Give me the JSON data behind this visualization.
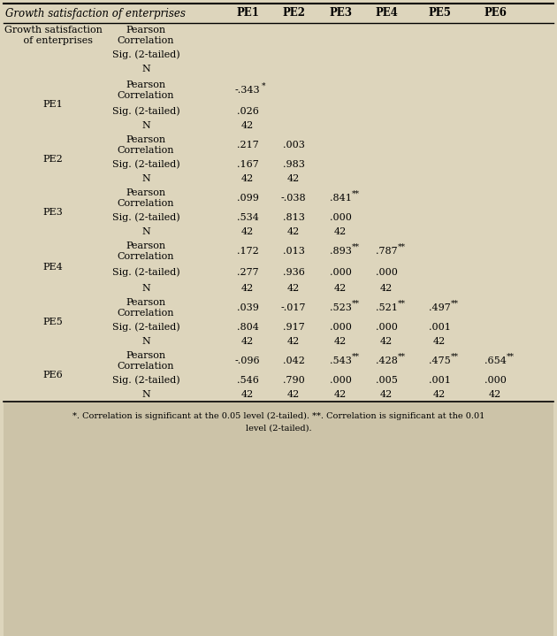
{
  "title": "Growth satisfaction of enterprises",
  "col_headers": [
    "PE1",
    "PE2",
    "PE3",
    "PE4",
    "PE5",
    "PE6"
  ],
  "bg_color": "#ddd5bc",
  "footnote_bg": "#ccc3a8",
  "rows": [
    {
      "row_label": "Growth satisfaction\n   of enterprises",
      "sub_rows": [
        {
          "label": "Pearson\nCorrelation",
          "values": [
            "",
            "",
            "",
            "",
            "",
            ""
          ]
        },
        {
          "label": "Sig. (2-tailed)",
          "values": [
            "",
            "",
            "",
            "",
            "",
            ""
          ]
        },
        {
          "label": "N",
          "values": [
            "",
            "",
            "",
            "",
            "",
            ""
          ]
        }
      ]
    },
    {
      "row_label": "PE1",
      "sub_rows": [
        {
          "label": "Pearson\nCorrelation",
          "values": [
            "-.343*",
            "",
            "",
            "",
            "",
            ""
          ]
        },
        {
          "label": "Sig. (2-tailed)",
          "values": [
            ".026",
            "",
            "",
            "",
            "",
            ""
          ]
        },
        {
          "label": "N",
          "values": [
            "42",
            "",
            "",
            "",
            "",
            ""
          ]
        }
      ]
    },
    {
      "row_label": "PE2",
      "sub_rows": [
        {
          "label": "Pearson\nCorrelation",
          "values": [
            ".217",
            ".003",
            "",
            "",
            "",
            ""
          ]
        },
        {
          "label": "Sig. (2-tailed)",
          "values": [
            ".167",
            ".983",
            "",
            "",
            "",
            ""
          ]
        },
        {
          "label": "N",
          "values": [
            "42",
            "42",
            "",
            "",
            "",
            ""
          ]
        }
      ]
    },
    {
      "row_label": "PE3",
      "sub_rows": [
        {
          "label": "Pearson\nCorrelation",
          "values": [
            ".099",
            "-.038",
            ".841**",
            "",
            "",
            ""
          ]
        },
        {
          "label": "Sig. (2-tailed)",
          "values": [
            ".534",
            ".813",
            ".000",
            "",
            "",
            ""
          ]
        },
        {
          "label": "N",
          "values": [
            "42",
            "42",
            "42",
            "",
            "",
            ""
          ]
        }
      ]
    },
    {
      "row_label": "PE4",
      "sub_rows": [
        {
          "label": "Pearson\nCorrelation",
          "values": [
            ".172",
            ".013",
            ".893**",
            ".787**",
            "",
            ""
          ]
        },
        {
          "label": "Sig. (2-tailed)",
          "values": [
            ".277",
            ".936",
            ".000",
            ".000",
            "",
            ""
          ]
        },
        {
          "label": "N",
          "values": [
            "42",
            "42",
            "42",
            "42",
            "",
            ""
          ]
        }
      ]
    },
    {
      "row_label": "PE5",
      "sub_rows": [
        {
          "label": "Pearson\nCorrelation",
          "values": [
            ".039",
            "-.017",
            ".523**",
            ".521**",
            ".497**",
            ""
          ]
        },
        {
          "label": "Sig. (2-tailed)",
          "values": [
            ".804",
            ".917",
            ".000",
            ".000",
            ".001",
            ""
          ]
        },
        {
          "label": "N",
          "values": [
            "42",
            "42",
            "42",
            "42",
            "42",
            ""
          ]
        }
      ]
    },
    {
      "row_label": "PE6",
      "sub_rows": [
        {
          "label": "Pearson\nCorrelation",
          "values": [
            "-.096",
            ".042",
            ".543**",
            ".428**",
            ".475**",
            ".654**"
          ]
        },
        {
          "label": "Sig. (2-tailed)",
          "values": [
            ".546",
            ".790",
            ".000",
            ".005",
            ".001",
            ".000"
          ]
        },
        {
          "label": "N",
          "values": [
            "42",
            "42",
            "42",
            "42",
            "42",
            "42"
          ]
        }
      ]
    }
  ],
  "footnote1": "*. Correlation is significant at the 0.05 level (2-tailed). **. Correlation is significant at the 0.01",
  "footnote2": "level (2-tailed)."
}
